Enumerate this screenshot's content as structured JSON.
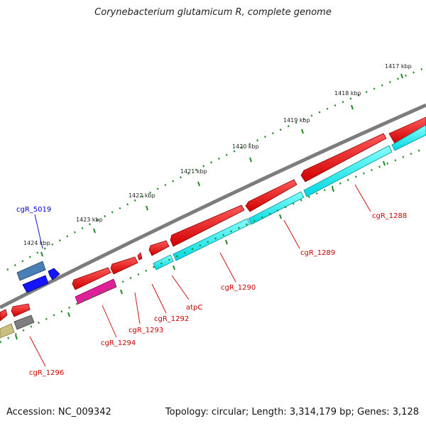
{
  "title": "Corynebacterium glutamicum R, complete genome",
  "accession": "Accession: NC_009342",
  "summary": "Topology: circular; Length: 3,314,179 bp; Genes: 3,128",
  "colors": {
    "backbone": "#808080",
    "forward_gene": "#ff0000",
    "rrna_like": "#00ffff",
    "label_red": "#cc0000",
    "label_blue": "#0000cc",
    "ticks": "#228b22"
  },
  "scale_labels": [
    "1417 kbp",
    "1418 kbp",
    "1419 kbp",
    "1420 kbp",
    "1421 kbp",
    "1422 kbp",
    "1423 kbp",
    "1424 kbp"
  ],
  "gene_labels": [
    "cgR_1288",
    "cgR_1289",
    "cgR_1290",
    "atpC",
    "cgR_1292",
    "cgR_1293",
    "cgR_1294",
    "cgR_1296",
    "cgR_5019"
  ]
}
